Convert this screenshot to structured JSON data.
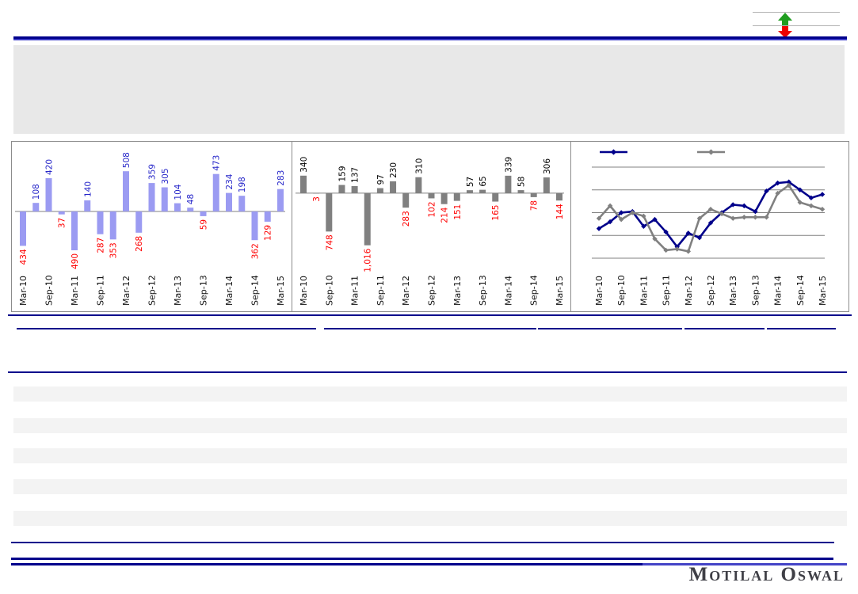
{
  "report": {
    "logo_text": "Motilal Oswal"
  },
  "indicator": {
    "up_arrow_icon_color": "#1f9d1f",
    "down_arrow_icon_color": "#ee0000"
  },
  "colors": {
    "rule_navy": "#00008b",
    "rule_navy_light": "#4343c6",
    "header_box": "#e8e8e8",
    "row_stripe": "#f3f3f3",
    "panel_border": "#8c8c8c"
  },
  "chart_data": [
    {
      "type": "bar",
      "name": "quarterly-bar-chart-left",
      "title": "",
      "xlabel": "",
      "ylabel": "",
      "values": [
        -434,
        108,
        420,
        -37,
        -490,
        140,
        -287,
        -353,
        508,
        -268,
        359,
        305,
        104,
        48,
        -59,
        473,
        234,
        198,
        -362,
        -129,
        283
      ],
      "x_tick_labels": [
        "Mar-10",
        "Sep-10",
        "Mar-11",
        "Sep-11",
        "Mar-12",
        "Sep-12",
        "Mar-13",
        "Sep-13",
        "Mar-14",
        "Sep-14",
        "Mar-15"
      ],
      "tick_every": 2,
      "ylim": [
        -540,
        880
      ],
      "grid": false,
      "bar_color": "#9b9bf2",
      "axis_color": "#808080",
      "value_label_color_positive": "#2626c9",
      "value_label_color_negative": "#fe0000",
      "value_labels_show_sign": false
    },
    {
      "type": "bar",
      "name": "quarterly-bar-chart-middle",
      "title": "",
      "xlabel": "",
      "ylabel": "",
      "values": [
        340,
        -3,
        -748,
        159,
        137,
        -1016,
        97,
        230,
        -283,
        310,
        -102,
        -214,
        -151,
        57,
        65,
        -165,
        339,
        58,
        -78,
        306,
        -144
      ],
      "x_tick_labels": [
        "Mar-10",
        "Sep-10",
        "Mar-11",
        "Sep-11",
        "Mar-12",
        "Sep-12",
        "Mar-13",
        "Sep-13",
        "Mar-14",
        "Sep-14",
        "Mar-15"
      ],
      "tick_every": 2,
      "ylim": [
        -1190,
        1000
      ],
      "grid": false,
      "bar_color": "#808080",
      "axis_color": "#808080",
      "value_label_color_positive": "#000000",
      "value_label_color_negative": "#fe0000",
      "value_labels_show_sign": false
    },
    {
      "type": "line",
      "name": "line-chart-right",
      "title": "",
      "xlabel": "",
      "ylabel": "",
      "x_tick_labels": [
        "Mar-10",
        "Sep-10",
        "Mar-11",
        "Sep-11",
        "Mar-12",
        "Sep-12",
        "Mar-13",
        "Sep-13",
        "Mar-14",
        "Sep-14",
        "Mar-15"
      ],
      "tick_every": 2,
      "y_axis_labels_visible": false,
      "gridline_values": [
        -2,
        -1,
        0,
        1,
        2
      ],
      "ylim": [
        -2.55,
        2.45
      ],
      "grid": true,
      "legend_position": "top",
      "series": [
        {
          "name": "series-1",
          "legend_label": "",
          "color": "#00008b",
          "marker": "diamond",
          "values": [
            -0.7,
            -0.4,
            0.0,
            0.05,
            -0.6,
            -0.3,
            -0.85,
            -1.5,
            -0.9,
            -1.1,
            -0.45,
            0.0,
            0.35,
            0.3,
            0.05,
            0.95,
            1.3,
            1.35,
            1.0,
            0.65,
            0.8
          ]
        },
        {
          "name": "series-2",
          "legend_label": "",
          "color": "#808080",
          "marker": "diamond",
          "values": [
            -0.25,
            0.3,
            -0.3,
            0.0,
            -0.15,
            -1.15,
            -1.65,
            -1.6,
            -1.7,
            -0.25,
            0.15,
            -0.05,
            -0.25,
            -0.2,
            -0.2,
            -0.2,
            0.85,
            1.2,
            0.45,
            0.3,
            0.15
          ]
        }
      ]
    }
  ]
}
